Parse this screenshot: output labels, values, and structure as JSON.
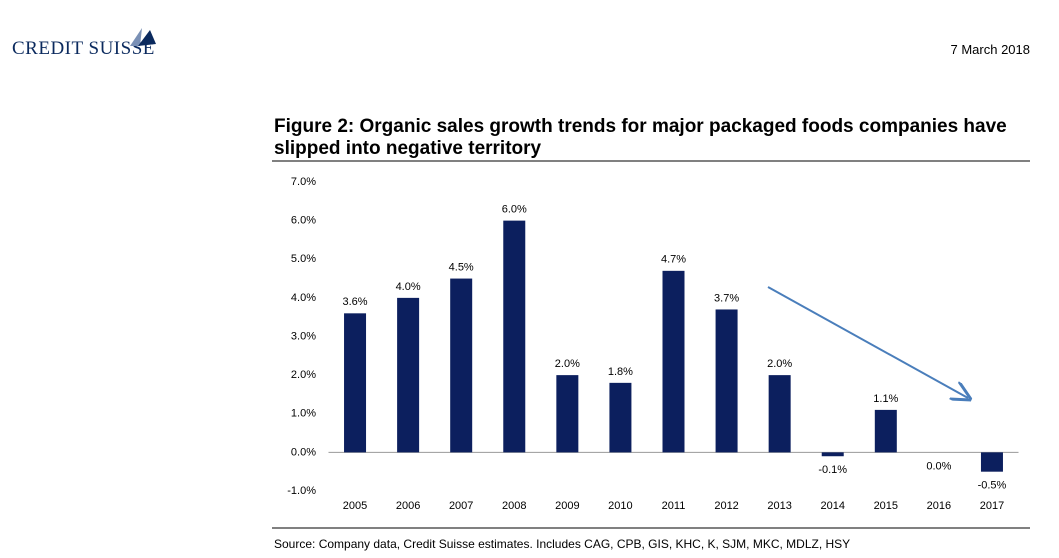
{
  "header": {
    "logo": "CREDIT SUISSE",
    "date": "7 March 2018"
  },
  "chart_data": {
    "type": "bar",
    "title": "Figure 2: Organic sales growth trends for major packaged foods companies have slipped into negative territory",
    "categories": [
      "2005",
      "2006",
      "2007",
      "2008",
      "2009",
      "2010",
      "2011",
      "2012",
      "2013",
      "2014",
      "2015",
      "2016",
      "2017"
    ],
    "values": [
      3.6,
      4.0,
      4.5,
      6.0,
      2.0,
      1.8,
      4.7,
      3.7,
      2.0,
      -0.1,
      1.1,
      0.0,
      -0.5
    ],
    "value_labels": [
      "3.6%",
      "4.0%",
      "4.5%",
      "6.0%",
      "2.0%",
      "1.8%",
      "4.7%",
      "3.7%",
      "2.0%",
      "-0.1%",
      "1.1%",
      "0.0%",
      "-0.5%"
    ],
    "color": "#0c1f5e",
    "ylim": [
      -1,
      7
    ],
    "yticks": [
      {
        "value": -1,
        "label": "-1.0%"
      },
      {
        "value": 0,
        "label": "0.0%"
      },
      {
        "value": 1,
        "label": "1.0%"
      },
      {
        "value": 2,
        "label": "2.0%"
      },
      {
        "value": 3,
        "label": "3.0%"
      },
      {
        "value": 4,
        "label": "4.0%"
      },
      {
        "value": 5,
        "label": "5.0%"
      },
      {
        "value": 6,
        "label": "6.0%"
      },
      {
        "value": 7,
        "label": "7.0%"
      }
    ]
  },
  "source": "Source: Company data, Credit Suisse estimates. Includes CAG, CPB, GIS, KHC, K, SJM, MKC, MDLZ, HSY"
}
